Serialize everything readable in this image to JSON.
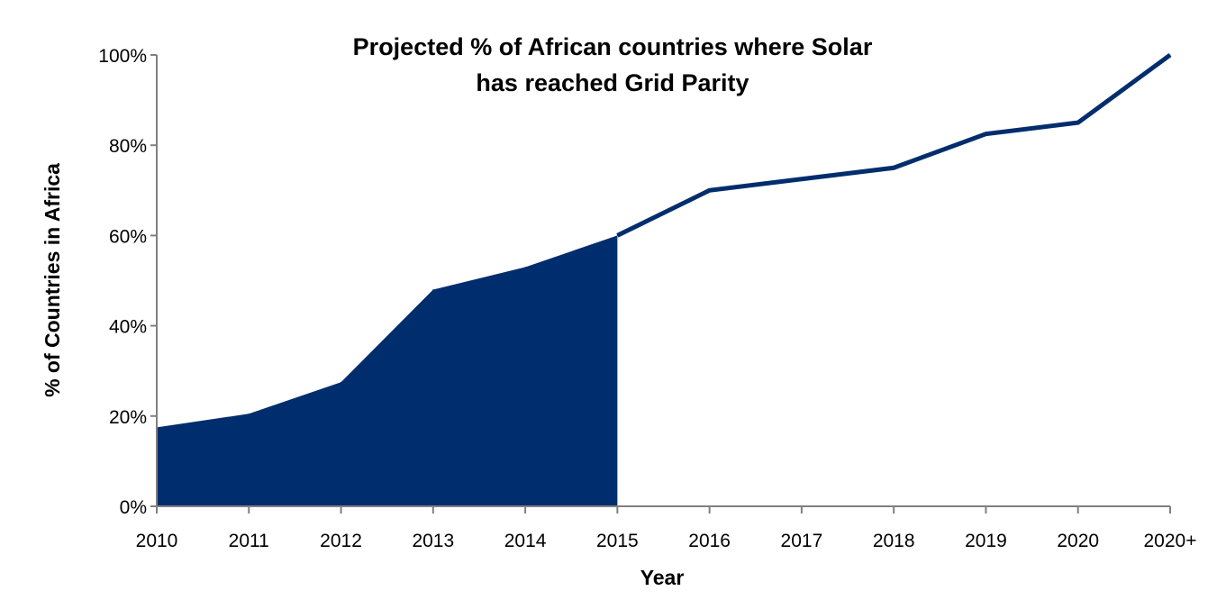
{
  "chart_data": {
    "type": "area",
    "title_lines": [
      "Projected % of African countries where Solar",
      "has reached Grid Parity"
    ],
    "xlabel": "Year",
    "ylabel": "% of Countries in Africa",
    "categories": [
      "2010",
      "2011",
      "2012",
      "2013",
      "2014",
      "2015",
      "2016",
      "2017",
      "2018",
      "2019",
      "2020",
      "2020+"
    ],
    "values": [
      17.5,
      20.5,
      27.5,
      48,
      53,
      60,
      70,
      72.5,
      75,
      82.5,
      85,
      100
    ],
    "filled_until": "2015",
    "ylim": [
      0,
      100
    ],
    "yticks": [
      0,
      20,
      40,
      60,
      80,
      100
    ],
    "ytick_labels": [
      "0%",
      "20%",
      "40%",
      "60%",
      "80%",
      "100%"
    ],
    "grid": false,
    "legend": "none",
    "colors": {
      "series": "#002d6d",
      "axis": "#808080"
    }
  }
}
